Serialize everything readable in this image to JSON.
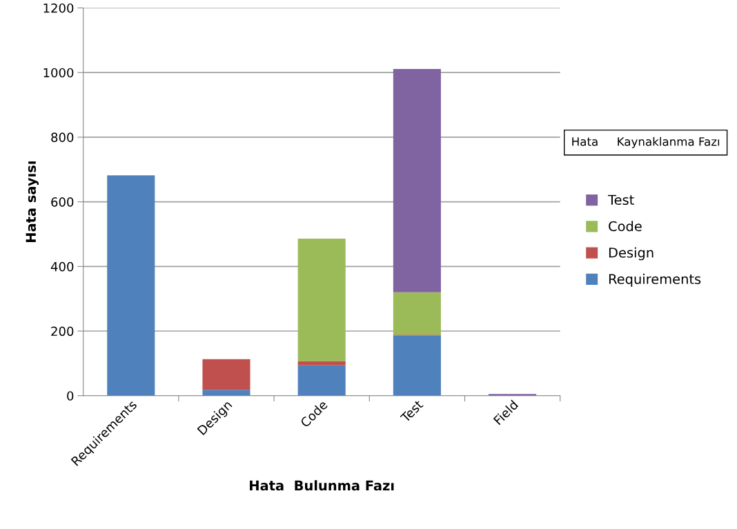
{
  "chart_data": {
    "type": "bar",
    "stacked": true,
    "xlabel": "Hata  Bulunma Fazı",
    "ylabel": "Hata sayısı",
    "legend_title": "Hata     Kaynaklanma Fazı",
    "categories": [
      "Requirements",
      "Design",
      "Code",
      "Test",
      "Field"
    ],
    "series": [
      {
        "name": "Requirements",
        "color": "#4f81bd",
        "values": [
          682,
          18,
          94,
          186,
          null
        ]
      },
      {
        "name": "Design",
        "color": "#c0504d",
        "values": [
          0,
          95,
          13,
          3,
          null
        ]
      },
      {
        "name": "Code",
        "color": "#9bbb59",
        "values": [
          0,
          0,
          379,
          131,
          null
        ]
      },
      {
        "name": "Test",
        "color": "#8064a2",
        "values": [
          0,
          0,
          0,
          691,
          5
        ]
      }
    ],
    "ylim": [
      0,
      1200
    ],
    "yticks": [
      0,
      200,
      400,
      600,
      800,
      1000,
      1200
    ],
    "grid": "y",
    "legend": "right"
  }
}
